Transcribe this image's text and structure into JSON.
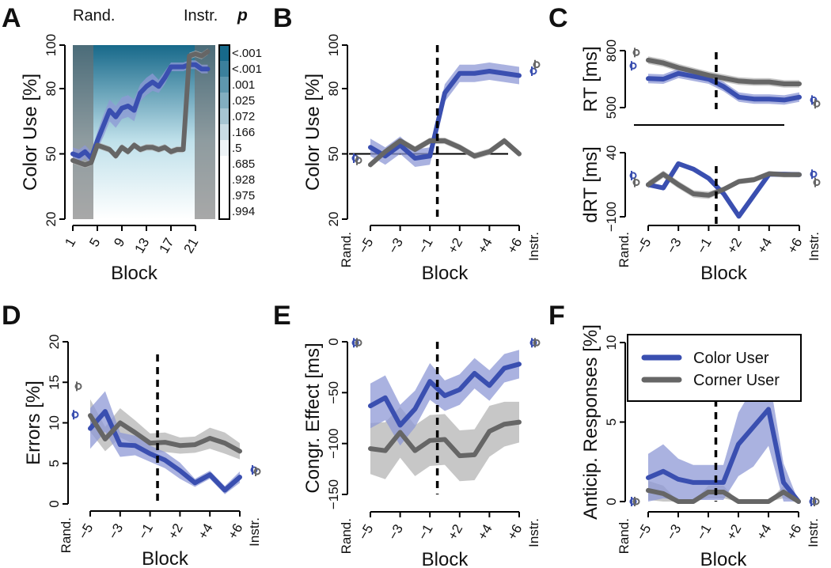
{
  "legend": {
    "items": [
      {
        "label": "Color User",
        "color": "#3a4fb0"
      },
      {
        "label": "Corner User",
        "color": "#666666"
      }
    ]
  },
  "colors": {
    "blue": "#3a4fb0",
    "blue_band": "#8e98d6",
    "gray": "#666666",
    "gray_band": "#b4b4b4",
    "teal": "#17698a"
  },
  "chart_data": [
    {
      "id": "A",
      "letter": "A",
      "type": "line",
      "xlabel": "Block",
      "ylabel": "Color Use [%]",
      "ylim": [
        20,
        100
      ],
      "yticks": [
        20,
        50,
        80,
        100
      ],
      "x": [
        1,
        2,
        3,
        4,
        5,
        6,
        7,
        8,
        9,
        10,
        11,
        12,
        13,
        14,
        15,
        16,
        17,
        18,
        19,
        20,
        21,
        22,
        23
      ],
      "xticks": [
        1,
        5,
        9,
        13,
        17,
        21
      ],
      "phase_labels": {
        "rand": "Rand.",
        "instr": "Instr."
      },
      "shaded_blocks": {
        "rand": [
          1,
          4
        ],
        "instr": [
          21,
          23
        ]
      },
      "colorbar": {
        "title": "p",
        "labels": [
          "<.001",
          "<.001",
          ".001",
          ".025",
          ".072",
          ".166",
          ".5",
          ".685",
          ".928",
          ".975",
          ".994"
        ]
      },
      "series": [
        {
          "name": "Color User",
          "values": [
            50,
            49,
            51,
            48,
            56,
            63,
            70,
            67,
            71,
            72,
            70,
            78,
            81,
            83,
            81,
            85,
            90,
            90,
            90,
            91,
            91,
            89,
            89
          ],
          "ci": [
            3,
            3,
            3,
            3,
            4,
            5,
            5,
            5,
            5,
            5,
            5,
            4,
            4,
            4,
            3,
            3,
            2,
            2,
            2,
            2,
            2,
            2,
            2
          ]
        },
        {
          "name": "Corner User",
          "values": [
            47,
            46,
            45,
            46,
            54,
            53,
            52,
            49,
            53,
            51,
            54,
            52,
            53,
            53,
            52,
            53,
            51,
            52,
            52,
            95,
            96,
            95,
            97
          ],
          "ci": [
            1.5,
            1.5,
            1.5,
            1.5,
            1.5,
            1.5,
            1.5,
            1.5,
            1.5,
            1.5,
            1.5,
            1.5,
            1.5,
            1.5,
            1.5,
            1.5,
            1.5,
            1.5,
            1.5,
            1.5,
            1.5,
            1.5,
            1.5
          ]
        }
      ]
    },
    {
      "id": "B",
      "letter": "B",
      "type": "line",
      "xlabel": "Block",
      "ylabel": "Color Use [%]",
      "ylim": [
        20,
        100
      ],
      "yticks": [
        20,
        50,
        80,
        100
      ],
      "x": [
        "-5",
        "-4",
        "-3",
        "-2",
        "-1",
        "+1",
        "+2",
        "+3",
        "+4",
        "+5",
        "+6"
      ],
      "xticks": [
        "−5",
        "−3",
        "−1",
        "+2",
        "+4",
        "+6"
      ],
      "phase_labels": {
        "rand": "Rand.",
        "instr": "Instr."
      },
      "reference_y": 50,
      "series": [
        {
          "name": "Color User",
          "values": [
            53,
            49,
            54,
            48,
            49,
            78,
            87,
            87,
            88,
            87,
            86
          ],
          "ci": [
            4,
            4,
            4,
            4,
            4,
            4,
            4,
            4,
            4,
            4,
            4
          ],
          "rand": 48,
          "instr": 88
        },
        {
          "name": "Corner User",
          "values": [
            45,
            51,
            56,
            52,
            56,
            56,
            53,
            49,
            51,
            56,
            50
          ],
          "ci": [
            1.5,
            1.5,
            1.5,
            1.5,
            1.5,
            1.5,
            1.5,
            1.5,
            1.5,
            1.5,
            1.5
          ],
          "rand": 47,
          "instr": 91
        }
      ]
    },
    {
      "id": "C-top",
      "letter": "C",
      "type": "line",
      "xlabel": "",
      "ylabel": "RT [ms]",
      "ylim": [
        500,
        800
      ],
      "yticks": [
        500,
        800
      ],
      "x": [
        "-5",
        "-4",
        "-3",
        "-2",
        "-1",
        "+1",
        "+2",
        "+3",
        "+4",
        "+5",
        "+6"
      ],
      "series": [
        {
          "name": "Color User",
          "values": [
            653,
            650,
            680,
            665,
            650,
            610,
            555,
            545,
            545,
            540,
            555
          ],
          "ci": [
            25,
            25,
            25,
            25,
            25,
            25,
            25,
            25,
            25,
            25,
            25
          ],
          "rand": 720,
          "instr": 540
        },
        {
          "name": "Corner User",
          "values": [
            750,
            735,
            710,
            690,
            670,
            655,
            640,
            635,
            635,
            625,
            625
          ],
          "ci": [
            20,
            20,
            20,
            20,
            20,
            20,
            20,
            20,
            20,
            20,
            20
          ],
          "rand": 790,
          "instr": 520
        }
      ]
    },
    {
      "id": "C-bottom",
      "letter": "",
      "type": "line",
      "xlabel": "Block",
      "ylabel": "dRT [ms]",
      "ylim": [
        -100,
        40
      ],
      "yticks": [
        -100,
        40
      ],
      "ytick_labels": [
        "−100",
        "40"
      ],
      "x": [
        "-5",
        "-4",
        "-3",
        "-2",
        "-1",
        "+1",
        "+2",
        "+3",
        "+4",
        "+5",
        "+6"
      ],
      "xticks": [
        "−5",
        "−3",
        "−1",
        "+2",
        "+4",
        "+6"
      ],
      "phase_labels": {
        "rand": "Rand.",
        "instr": "Instr."
      },
      "series": [
        {
          "name": "Color User",
          "values": [
            -30,
            -37,
            16,
            4,
            -16,
            -50,
            -99,
            -53,
            -7,
            -7,
            -8
          ],
          "ci": [
            5,
            5,
            5,
            5,
            5,
            5,
            5,
            5,
            5,
            5,
            5
          ],
          "rand": -10,
          "instr": -7
        },
        {
          "name": "Corner User",
          "values": [
            -30,
            -7,
            -30,
            -50,
            -53,
            -40,
            -23,
            -19,
            -6,
            -8,
            -8
          ],
          "ci": [
            8,
            8,
            8,
            8,
            8,
            6,
            6,
            6,
            6,
            6,
            6
          ],
          "rand": -25,
          "instr": -25
        }
      ]
    },
    {
      "id": "D",
      "letter": "D",
      "type": "line",
      "xlabel": "Block",
      "ylabel": "Errors [%]",
      "ylim": [
        0,
        20
      ],
      "yticks": [
        0,
        5,
        10,
        15,
        20
      ],
      "x": [
        "-5",
        "-4",
        "-3",
        "-2",
        "-1",
        "+1",
        "+2",
        "+3",
        "+4",
        "+5",
        "+6"
      ],
      "xticks": [
        "−5",
        "−3",
        "−1",
        "+2",
        "+4",
        "+6"
      ],
      "phase_labels": {
        "rand": "Rand.",
        "instr": "Instr."
      },
      "series": [
        {
          "name": "Color User",
          "values": [
            9.3,
            11.4,
            7.3,
            7.2,
            6.2,
            5.4,
            4.1,
            2.6,
            3.6,
            1.7,
            3.3
          ],
          "ci": [
            2.5,
            2.5,
            1.5,
            1.2,
            1,
            1,
            1,
            0.5,
            0.5,
            0.5,
            0.7
          ],
          "rand": 11,
          "instr": 4.2
        },
        {
          "name": "Corner User",
          "values": [
            10.9,
            8,
            10,
            8.8,
            7.5,
            7.6,
            7.2,
            7.3,
            8.1,
            7.5,
            6.5
          ],
          "ci": [
            2,
            1.5,
            1.8,
            1.5,
            1.2,
            1.2,
            1,
            1,
            1.3,
            1.3,
            1
          ],
          "rand": 14.5,
          "instr": 4.0
        }
      ]
    },
    {
      "id": "E",
      "letter": "E",
      "type": "line",
      "xlabel": "Block",
      "ylabel": "Congr. Effect [ms]",
      "ylim": [
        -150,
        0
      ],
      "yticks": [
        -150,
        -100,
        -50,
        0
      ],
      "ytick_labels": [
        "−150",
        "−100",
        "−50",
        "0"
      ],
      "x": [
        "-5",
        "-4",
        "-3",
        "-2",
        "-1",
        "+1",
        "+2",
        "+3",
        "+4",
        "+5",
        "+6"
      ],
      "xticks": [
        "−5",
        "−3",
        "−1",
        "+2",
        "+4",
        "+6"
      ],
      "phase_labels": {
        "rand": "Rand.",
        "instr": "Instr."
      },
      "series": [
        {
          "name": "Color User",
          "values": [
            -63,
            -55,
            -82,
            -66,
            -39,
            -53,
            -47,
            -31,
            -43,
            -26,
            -22
          ],
          "ci": [
            22,
            22,
            20,
            18,
            18,
            15,
            15,
            15,
            15,
            14,
            14
          ],
          "rand": -1,
          "instr": -1
        },
        {
          "name": "Corner User",
          "values": [
            -105,
            -107,
            -89,
            -107,
            -97,
            -96,
            -112,
            -111,
            -88,
            -81,
            -79
          ],
          "ci": [
            25,
            28,
            25,
            25,
            25,
            25,
            25,
            25,
            25,
            22,
            20
          ],
          "rand": -1,
          "instr": -1
        }
      ]
    },
    {
      "id": "F",
      "letter": "F",
      "type": "line",
      "xlabel": "Block",
      "ylabel": "Anticip. Responses [%]",
      "ylim": [
        0,
        10
      ],
      "yticks": [
        0,
        5,
        10
      ],
      "x": [
        "-5",
        "-4",
        "-3",
        "-2",
        "-1",
        "+1",
        "+2",
        "+3",
        "+4",
        "+5",
        "+6"
      ],
      "xticks": [
        "−5",
        "−3",
        "−1",
        "+2",
        "+4",
        "+6"
      ],
      "phase_labels": {
        "rand": "Rand.",
        "instr": "Instr."
      },
      "legend_position": "top-right",
      "series": [
        {
          "name": "Color User",
          "values": [
            1.5,
            1.9,
            1.4,
            1.2,
            1.2,
            1.2,
            3.6,
            4.7,
            5.8,
            1.2,
            0
          ],
          "ci": [
            1.5,
            1.7,
            1.3,
            1.1,
            1.1,
            1.1,
            2,
            2.5,
            2.3,
            1.2,
            0
          ],
          "rand": 0,
          "instr": 0
        },
        {
          "name": "Corner User",
          "values": [
            0.7,
            0.5,
            0,
            0,
            0.6,
            0.6,
            0,
            0,
            0,
            0.6,
            0
          ],
          "ci": [
            0.6,
            0.5,
            0,
            0,
            0.4,
            0.4,
            0,
            0,
            0,
            0.4,
            0
          ],
          "rand": 0,
          "instr": 0
        }
      ]
    }
  ]
}
